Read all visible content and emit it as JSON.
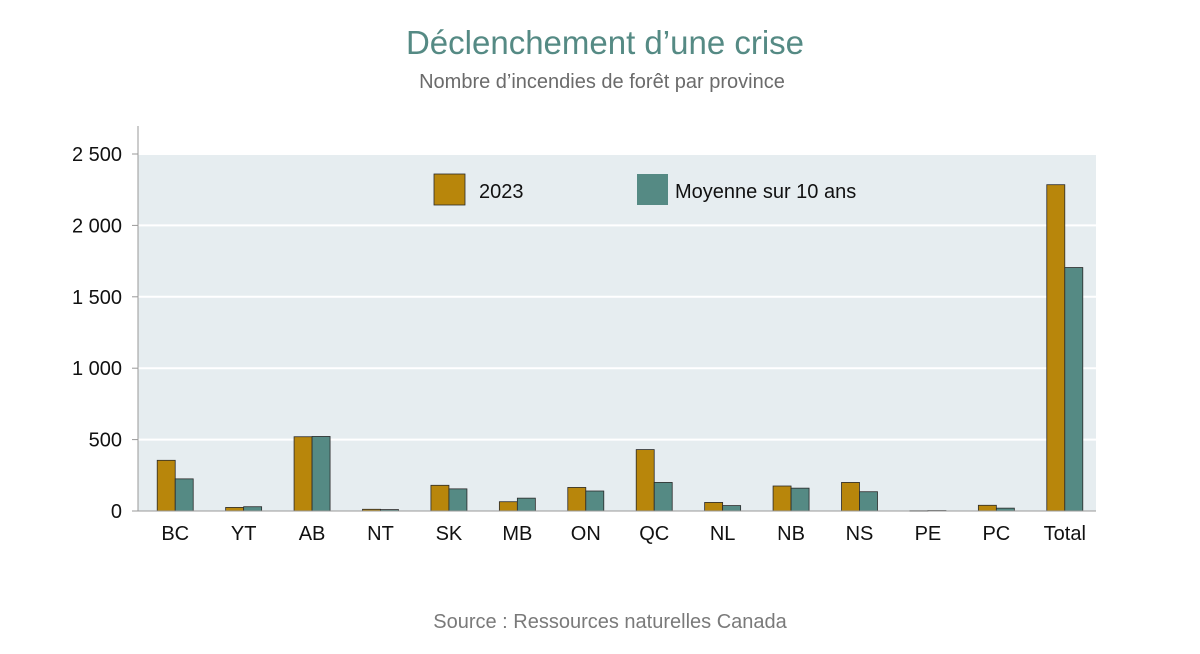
{
  "header": {
    "title": "Déclenchement d’une crise",
    "subtitle": "Nombre d’incendies de forêt par province"
  },
  "footer": {
    "source": "Source : Ressources naturelles Canada"
  },
  "colors": {
    "series_2023": "#b8860b",
    "series_avg": "#558a84",
    "plot_bg": "#e6edf0",
    "grid": "#ffffff"
  },
  "chart_data": {
    "type": "bar",
    "title": "Déclenchement d’une crise",
    "subtitle": "Nombre d’incendies de forêt par province",
    "xlabel": "",
    "ylabel": "",
    "ylim": [
      0,
      2500
    ],
    "yticks": [
      0,
      500,
      1000,
      1500,
      2000,
      2500
    ],
    "ytick_labels": [
      "0",
      "500",
      "1 000",
      "1 500",
      "2 000",
      "2 500"
    ],
    "grid": true,
    "legend_position": "top-center",
    "categories": [
      "BC",
      "YT",
      "AB",
      "NT",
      "SK",
      "MB",
      "ON",
      "QC",
      "NL",
      "NB",
      "NS",
      "PE",
      "PC",
      "Total"
    ],
    "series": [
      {
        "name": "2023",
        "color": "#b8860b",
        "values": [
          355,
          25,
          520,
          12,
          180,
          65,
          165,
          430,
          60,
          175,
          200,
          2,
          40,
          2285
        ]
      },
      {
        "name": "Moyenne sur 10 ans",
        "color": "#558a84",
        "values": [
          225,
          30,
          522,
          10,
          155,
          90,
          140,
          200,
          38,
          160,
          135,
          3,
          20,
          1705
        ]
      }
    ]
  }
}
